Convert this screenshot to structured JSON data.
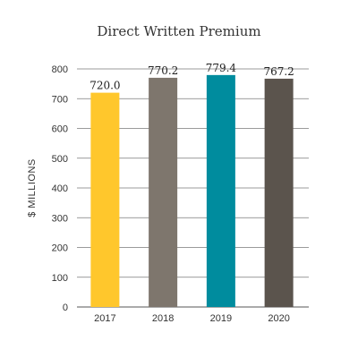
{
  "chart_data": {
    "type": "bar",
    "title": "Direct Written Premium",
    "xlabel": "",
    "ylabel": "$ MILLIONS",
    "categories": [
      "2017",
      "2018",
      "2019",
      "2020"
    ],
    "values": [
      720.0,
      770.2,
      779.4,
      767.2
    ],
    "value_labels": [
      "720.0",
      "770.2",
      "779.4",
      "767.2"
    ],
    "bar_colors": [
      "#FFC72C",
      "#7E766D",
      "#008C9E",
      "#5B544D"
    ],
    "ylim": [
      0,
      800
    ],
    "yticks": [
      0,
      100,
      200,
      300,
      400,
      500,
      600,
      700,
      800
    ],
    "grid": true,
    "legend": "none"
  }
}
